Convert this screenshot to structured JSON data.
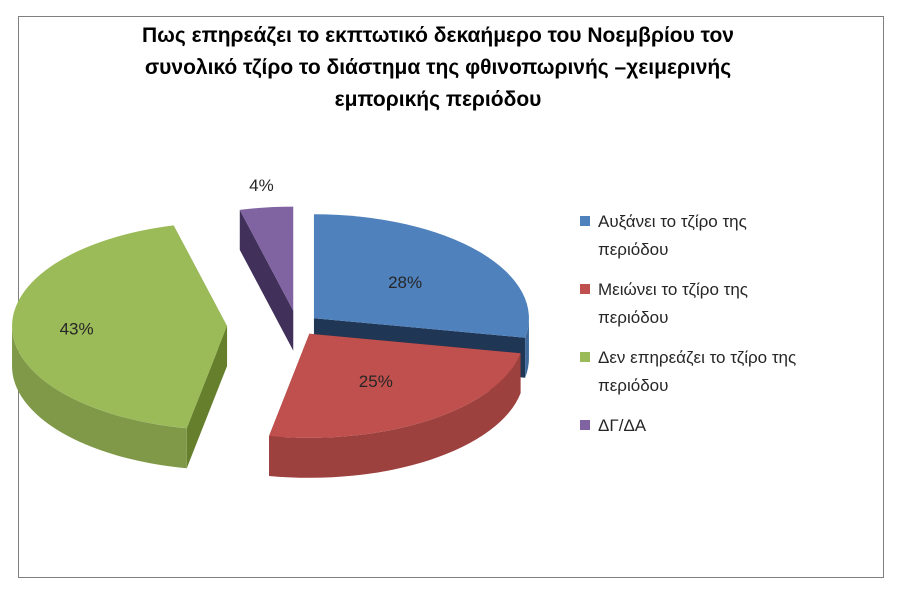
{
  "chart_data": {
    "type": "pie",
    "title_lines": [
      "Πως επηρεάζει το εκπτωτικό δεκαήμερο του Νοεμβρίου τον",
      "συνολικό τζίρο το διάστημα της φθινοπωρινής –χειμερινής",
      "εμπορικής περιόδου"
    ],
    "slices": [
      {
        "label_lines": [
          "Αυξάνει το τζίρο της",
          "περιόδου"
        ],
        "value": 28,
        "display": "28%",
        "color": "#4f81bd",
        "side": "#1f3655"
      },
      {
        "label_lines": [
          "Μειώνει το τζίρο της",
          "περιόδου"
        ],
        "value": 25,
        "display": "25%",
        "color": "#c0504d",
        "side": "#7a2a27"
      },
      {
        "label_lines": [
          "Δεν επηρεάζει το τζίρο της",
          "περιόδου"
        ],
        "value": 43,
        "display": "43%",
        "color": "#9bbb59",
        "side": "#667f2d"
      },
      {
        "label_lines": [
          "ΔΓ/ΔΑ"
        ],
        "value": 4,
        "display": "4%",
        "color": "#8064a2",
        "side": "#40305a"
      }
    ],
    "legend_position": "right",
    "style": "3d-exploded"
  }
}
